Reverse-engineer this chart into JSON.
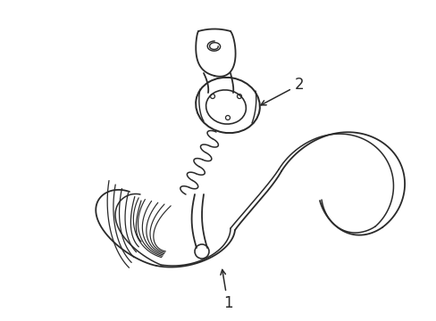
{
  "bg_color": "#ffffff",
  "line_color": "#2a2a2a",
  "line_width": 1.3,
  "label1_text": "1",
  "label2_text": "2",
  "font_size": 12,
  "figsize": [
    4.89,
    3.6
  ],
  "dpi": 100
}
